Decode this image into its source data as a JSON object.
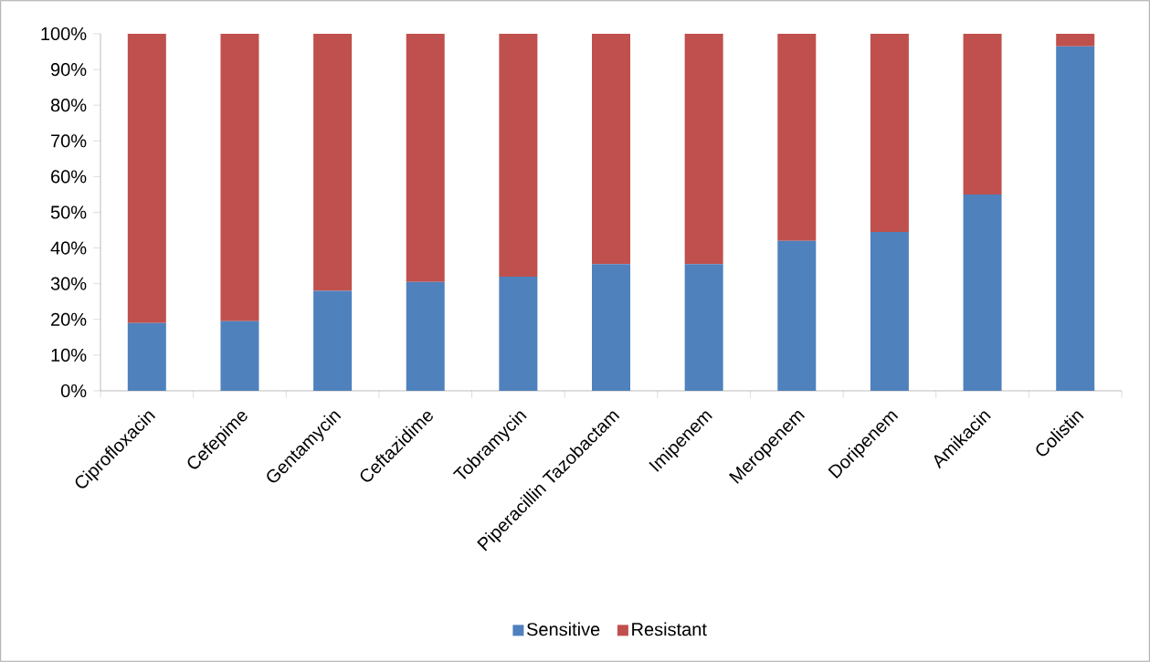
{
  "chart_data": {
    "type": "bar",
    "stacked": true,
    "categories": [
      "Ciprofloxacin",
      "Cefepime",
      "Gentamycin",
      "Ceftazidime",
      "Tobramycin",
      "Piperacillin Tazobactam",
      "Imipenem",
      "Meropenem",
      "Doripenem",
      "Amikacin",
      "Colistin"
    ],
    "series": [
      {
        "name": "Sensitive",
        "color": "#4f81bd",
        "values": [
          19,
          19.5,
          28,
          30.5,
          32,
          35.5,
          35.5,
          42,
          44.5,
          55,
          96.5
        ]
      },
      {
        "name": "Resistant",
        "color": "#c0504d",
        "values": [
          81,
          80.5,
          72,
          69.5,
          68,
          64.5,
          64.5,
          58,
          55.5,
          45,
          3.5
        ]
      }
    ],
    "ylim": [
      0,
      100
    ],
    "yticks": [
      {
        "value": 0,
        "label": "0%"
      },
      {
        "value": 10,
        "label": "10%"
      },
      {
        "value": 20,
        "label": "20%"
      },
      {
        "value": 30,
        "label": "30%"
      },
      {
        "value": 40,
        "label": "40%"
      },
      {
        "value": 50,
        "label": "50%"
      },
      {
        "value": 60,
        "label": "60%"
      },
      {
        "value": 70,
        "label": "70%"
      },
      {
        "value": 80,
        "label": "80%"
      },
      {
        "value": 90,
        "label": "90%"
      },
      {
        "value": 100,
        "label": "100%"
      }
    ],
    "legend": "bottom"
  }
}
